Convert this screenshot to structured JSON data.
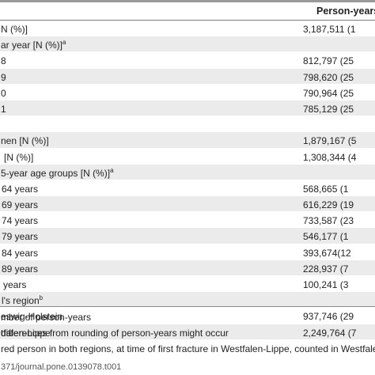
{
  "table": {
    "column_header": "Person-years",
    "rows": [
      {
        "label": "N (%)]",
        "value": "3,187,511 (1",
        "sup": ""
      },
      {
        "label": "ar year [N (%)]",
        "value": "",
        "sup": "a"
      },
      {
        "label": "8",
        "value": "812,797 (25",
        "sup": ""
      },
      {
        "label": "9",
        "value": "798,620 (25",
        "sup": ""
      },
      {
        "label": "0",
        "value": "790,964 (25",
        "sup": ""
      },
      {
        "label": "1",
        "value": "785,129 (25",
        "sup": ""
      },
      {
        "label": "",
        "value": "",
        "sup": ""
      },
      {
        "label": "nen [N (%)]",
        "value": "1,879,167 (5",
        "sup": ""
      },
      {
        "label": "[N (%)]",
        "value": "1,308,344 (4",
        "sup": ""
      },
      {
        "label": "5-year age groups [N (%)]",
        "value": "",
        "sup": "a"
      },
      {
        "label": "64 years",
        "value": "568,665 (1",
        "sup": ""
      },
      {
        "label": "69 years",
        "value": "616,229 (19",
        "sup": ""
      },
      {
        "label": "74 years",
        "value": "733,587 (23",
        "sup": ""
      },
      {
        "label": "79 years",
        "value": "546,177 (1",
        "sup": ""
      },
      {
        "label": "84 years",
        "value": "393,674(12",
        "sup": ""
      },
      {
        "label": "89 years",
        "value": "228,937 (7",
        "sup": ""
      },
      {
        "label": "years",
        "value": "100,241 (3",
        "sup": ""
      },
      {
        "label": "l's region",
        "value": "",
        "sup": "b"
      },
      {
        "label": "eswig-Holstein",
        "value": "937,746 (29",
        "sup": ""
      },
      {
        "label": "tfalen-Lippe",
        "value": "2,249,764 (7",
        "sup": ""
      }
    ]
  },
  "footnotes": [
    "mber of person-years",
    "differences from rounding of person-years might occur",
    "red person in both regions, at time of first fracture in Westfalen-Lippe, counted in Westfalen-Li"
  ],
  "doi": "371/journal.pone.0139078.t001"
}
